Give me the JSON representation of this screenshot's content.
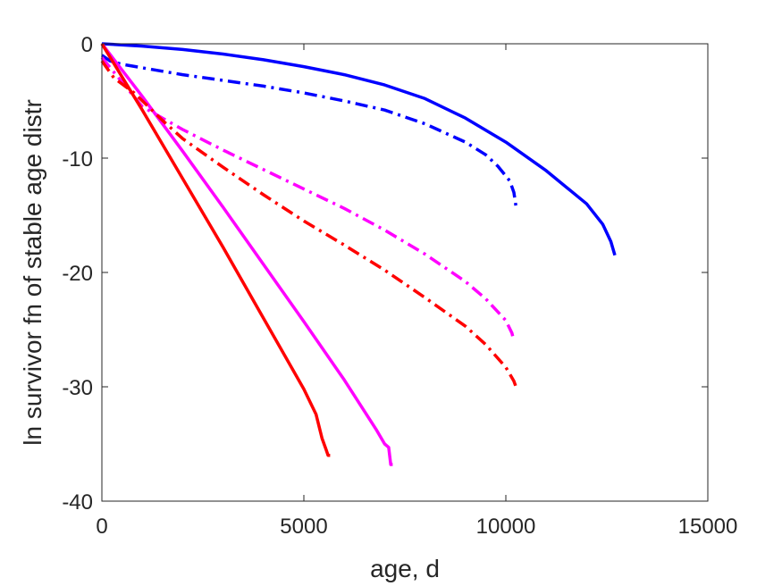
{
  "chart_data": {
    "type": "line",
    "xlabel": "age, d",
    "ylabel": "ln survivor fn of stable age distr",
    "xlim": [
      0,
      15000
    ],
    "ylim": [
      -40,
      0
    ],
    "xticks": [
      0,
      5000,
      10000,
      15000
    ],
    "yticks": [
      0,
      -10,
      -20,
      -30,
      -40
    ],
    "xtick_labels": [
      "0",
      "5000",
      "10000",
      "15000"
    ],
    "ytick_labels": [
      "0",
      "-10",
      "-20",
      "-30",
      "-40"
    ],
    "grid": false,
    "legend": "none",
    "series": [
      {
        "color": "#0000ff",
        "style": "solid",
        "points": [
          [
            0,
            0
          ],
          [
            1000,
            -0.2
          ],
          [
            2000,
            -0.5
          ],
          [
            3000,
            -0.9
          ],
          [
            4000,
            -1.4
          ],
          [
            5000,
            -2.0
          ],
          [
            6000,
            -2.7
          ],
          [
            7000,
            -3.6
          ],
          [
            8000,
            -4.8
          ],
          [
            9000,
            -6.5
          ],
          [
            10000,
            -8.6
          ],
          [
            11000,
            -11.1
          ],
          [
            12000,
            -14.0
          ],
          [
            12400,
            -15.8
          ],
          [
            12600,
            -17.3
          ],
          [
            12700,
            -18.5
          ]
        ]
      },
      {
        "color": "#0000ff",
        "style": "dashdot",
        "points": [
          [
            0,
            -1.0
          ],
          [
            200,
            -1.5
          ],
          [
            500,
            -1.8
          ],
          [
            1000,
            -2.1
          ],
          [
            2000,
            -2.7
          ],
          [
            3000,
            -3.2
          ],
          [
            4000,
            -3.7
          ],
          [
            5000,
            -4.3
          ],
          [
            6000,
            -5.0
          ],
          [
            7000,
            -5.8
          ],
          [
            8000,
            -7.0
          ],
          [
            9000,
            -8.6
          ],
          [
            9500,
            -9.7
          ],
          [
            9800,
            -10.7
          ],
          [
            10100,
            -12.0
          ],
          [
            10200,
            -13.0
          ],
          [
            10250,
            -14.2
          ]
        ]
      },
      {
        "color": "#ff00ff",
        "style": "solid",
        "points": [
          [
            0,
            0
          ],
          [
            1000,
            -4.6
          ],
          [
            2000,
            -9.4
          ],
          [
            3000,
            -14.3
          ],
          [
            4000,
            -19.3
          ],
          [
            5000,
            -24.3
          ],
          [
            6000,
            -29.4
          ],
          [
            6800,
            -33.8
          ],
          [
            7000,
            -35.0
          ],
          [
            7100,
            -35.3
          ],
          [
            7150,
            -36.8
          ],
          [
            7200,
            -36.8
          ]
        ]
      },
      {
        "color": "#ff00ff",
        "style": "dashdot",
        "points": [
          [
            0,
            -1.2
          ],
          [
            300,
            -2.5
          ],
          [
            1000,
            -5.5
          ],
          [
            2000,
            -7.5
          ],
          [
            3000,
            -9.3
          ],
          [
            4000,
            -11.0
          ],
          [
            5000,
            -12.7
          ],
          [
            6000,
            -14.4
          ],
          [
            7000,
            -16.3
          ],
          [
            8000,
            -18.4
          ],
          [
            9000,
            -20.8
          ],
          [
            9500,
            -22.3
          ],
          [
            10000,
            -24.2
          ],
          [
            10150,
            -25.3
          ],
          [
            10200,
            -26.0
          ]
        ]
      },
      {
        "color": "#ff0000",
        "style": "solid",
        "points": [
          [
            0,
            0
          ],
          [
            1000,
            -5.8
          ],
          [
            2000,
            -11.8
          ],
          [
            3000,
            -17.8
          ],
          [
            4000,
            -24.0
          ],
          [
            5000,
            -30.2
          ],
          [
            5300,
            -32.4
          ],
          [
            5450,
            -34.5
          ],
          [
            5550,
            -35.5
          ],
          [
            5600,
            -36.0
          ],
          [
            5650,
            -36.0
          ]
        ]
      },
      {
        "color": "#ff0000",
        "style": "dashdot",
        "points": [
          [
            0,
            -1.5
          ],
          [
            300,
            -3.0
          ],
          [
            800,
            -4.3
          ],
          [
            1500,
            -6.7
          ],
          [
            2000,
            -8.3
          ],
          [
            3000,
            -10.8
          ],
          [
            4000,
            -13.2
          ],
          [
            5000,
            -15.5
          ],
          [
            6000,
            -17.6
          ],
          [
            7000,
            -19.8
          ],
          [
            8000,
            -22.2
          ],
          [
            9000,
            -24.7
          ],
          [
            9500,
            -26.3
          ],
          [
            10000,
            -28.3
          ],
          [
            10200,
            -29.5
          ],
          [
            10250,
            -30.0
          ]
        ]
      }
    ]
  }
}
